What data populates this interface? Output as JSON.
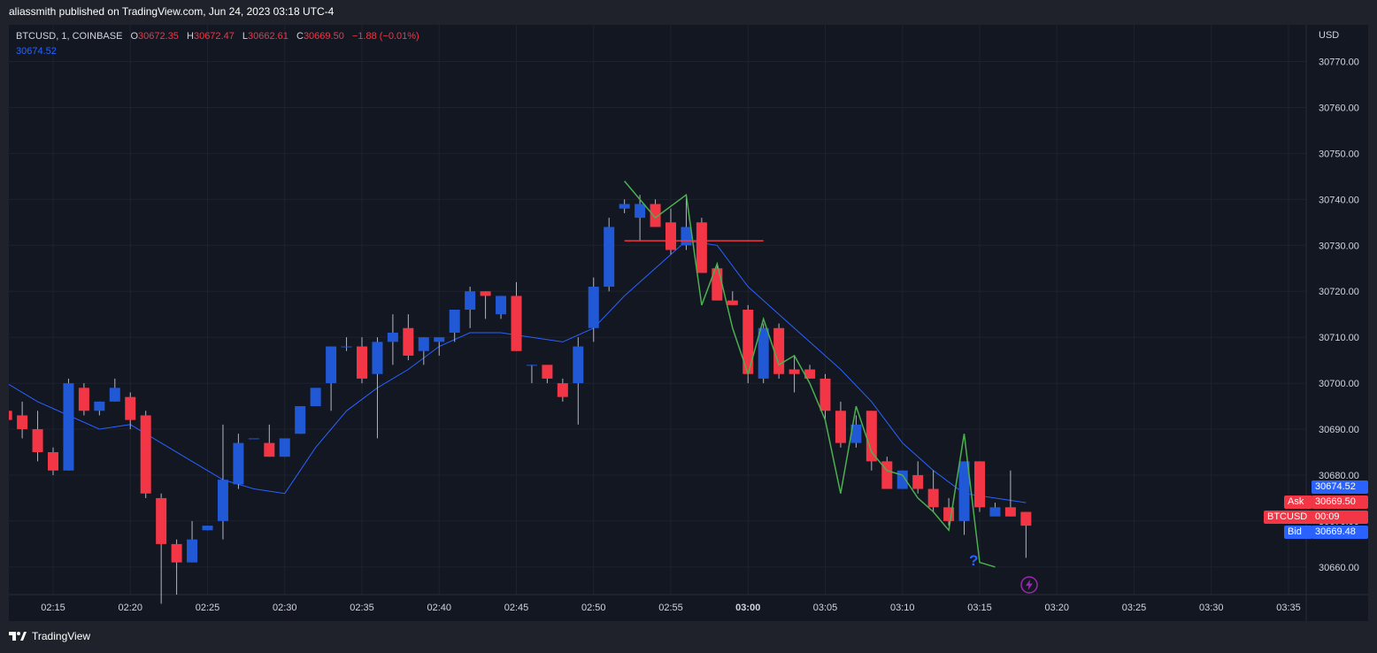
{
  "header": {
    "text": "aliassmith published on TradingView.com, Jun 24, 2023 03:18 UTC-4"
  },
  "symbol": {
    "name": "BTCUSD, 1, COINBASE",
    "o_label": "O",
    "o_value": "30672.35",
    "h_label": "H",
    "h_value": "30672.47",
    "l_label": "L",
    "l_value": "30662.61",
    "c_label": "C",
    "c_value": "30669.50",
    "change": "−1.88 (−0.01%)"
  },
  "ma_value": "30674.52",
  "currency": "USD",
  "price_tags": {
    "ma": "30674.52",
    "ask_label": "Ask",
    "ask": "30669.50",
    "symbol_label": "BTCUSD",
    "countdown": "00:09",
    "bid_label": "Bid",
    "bid": "30669.48"
  },
  "footer": {
    "brand": "TradingView"
  },
  "annotation": {
    "question": "?"
  },
  "colors": {
    "up": "#2158d6",
    "down": "#f23645",
    "ma": "#2962ff",
    "zigzag": "#4caf50",
    "bg": "#131722"
  },
  "chart_data": {
    "type": "candlestick",
    "title": "BTCUSD, 1, COINBASE",
    "x_ticks": [
      "02:15",
      "02:20",
      "02:25",
      "02:30",
      "02:35",
      "02:40",
      "02:45",
      "02:50",
      "02:55",
      "03:00",
      "03:05",
      "03:10",
      "03:15",
      "03:20",
      "03:25",
      "03:30",
      "03:35"
    ],
    "x_tick_start_minute": 135,
    "y_ticks": [
      30660,
      30670,
      30680,
      30690,
      30700,
      30710,
      30720,
      30730,
      30740,
      30750,
      30760,
      30770
    ],
    "ylim": [
      30654,
      30778
    ],
    "grid": true,
    "candles": {
      "fields": [
        "minute",
        "open",
        "high",
        "low",
        "close"
      ],
      "rows": [
        [
          132,
          30694,
          30695,
          30690,
          30692
        ],
        [
          133,
          30693,
          30696,
          30688,
          30690
        ],
        [
          134,
          30690,
          30694,
          30683,
          30685
        ],
        [
          135,
          30685,
          30686,
          30680,
          30681
        ],
        [
          136,
          30681,
          30701,
          30681,
          30700
        ],
        [
          137,
          30699,
          30700,
          30693,
          30694
        ],
        [
          138,
          30694,
          30696,
          30693,
          30696
        ],
        [
          139,
          30696,
          30701,
          30696,
          30699
        ],
        [
          140,
          30697,
          30698,
          30690,
          30692
        ],
        [
          141,
          30693,
          30694,
          30675,
          30676
        ],
        [
          142,
          30675,
          30676,
          30652,
          30665
        ],
        [
          143,
          30665,
          30666,
          30654,
          30661
        ],
        [
          144,
          30661,
          30670,
          30661,
          30666
        ],
        [
          145,
          30668,
          30669,
          30668,
          30669
        ],
        [
          146,
          30670,
          30691,
          30666,
          30679
        ],
        [
          147,
          30678,
          30689,
          30677,
          30687
        ],
        [
          148,
          30688,
          30688,
          30688,
          30688
        ],
        [
          149,
          30687,
          30691,
          30684,
          30684
        ],
        [
          150,
          30684,
          30687,
          30684,
          30688
        ],
        [
          151,
          30689,
          30695,
          30689,
          30695
        ],
        [
          152,
          30695,
          30698,
          30697,
          30699
        ],
        [
          153,
          30700,
          30708,
          30694,
          30708
        ],
        [
          154,
          30708,
          30710,
          30707,
          30708
        ],
        [
          155,
          30708,
          30710,
          30700,
          30701
        ],
        [
          156,
          30702,
          30710,
          30688,
          30709
        ],
        [
          157,
          30709,
          30715,
          30704,
          30711
        ],
        [
          158,
          30712,
          30715,
          30705,
          30706
        ],
        [
          159,
          30707,
          30710,
          30704,
          30710
        ],
        [
          160,
          30709,
          30709,
          30706,
          30710
        ],
        [
          161,
          30711,
          30716,
          30709,
          30716
        ],
        [
          162,
          30716,
          30721,
          30712,
          30720
        ],
        [
          163,
          30720,
          30720,
          30714,
          30719
        ],
        [
          164,
          30715,
          30719,
          30714,
          30719
        ],
        [
          165,
          30719,
          30722,
          30707,
          30707
        ],
        [
          166,
          30704,
          30704,
          30700,
          30704
        ],
        [
          167,
          30704,
          30703,
          30700,
          30701
        ],
        [
          168,
          30700,
          30701,
          30696,
          30697
        ],
        [
          169,
          30700,
          30710,
          30691,
          30708
        ],
        [
          170,
          30712,
          30723,
          30709,
          30721
        ],
        [
          171,
          30721,
          30736,
          30720,
          30734
        ],
        [
          172,
          30738,
          30740,
          30737,
          30739
        ],
        [
          173,
          30736,
          30741,
          30731,
          30739
        ],
        [
          174,
          30739,
          30740,
          30734,
          30734
        ],
        [
          175,
          30735,
          30738,
          30728,
          30729
        ],
        [
          176,
          30730,
          30741,
          30729,
          30734
        ],
        [
          177,
          30735,
          30736,
          30724,
          30724
        ],
        [
          178,
          30725,
          30726,
          30718,
          30718
        ],
        [
          179,
          30718,
          30720,
          30717,
          30717
        ],
        [
          180,
          30716,
          30717,
          30700,
          30702
        ],
        [
          181,
          30701,
          30713,
          30700,
          30712
        ],
        [
          182,
          30712,
          30713,
          30701,
          30702
        ],
        [
          183,
          30703,
          30706,
          30698,
          30702
        ],
        [
          184,
          30703,
          30704,
          30701,
          30701
        ],
        [
          185,
          30701,
          30702,
          30692,
          30694
        ],
        [
          186,
          30694,
          30696,
          30686,
          30687
        ],
        [
          187,
          30687,
          30693,
          30686,
          30691
        ],
        [
          188,
          30694,
          30694,
          30681,
          30683
        ],
        [
          189,
          30683,
          30684,
          30677,
          30677
        ],
        [
          190,
          30677,
          30681,
          30677,
          30681
        ],
        [
          191,
          30680,
          30683,
          30676,
          30677
        ],
        [
          192,
          30677,
          30681,
          30672,
          30673
        ],
        [
          193,
          30673,
          30675,
          30669,
          30670
        ],
        [
          194,
          30670,
          30683,
          30667,
          30683
        ],
        [
          195,
          30683,
          30683,
          30672,
          30673
        ],
        [
          196,
          30671,
          30674,
          30672,
          30673
        ],
        [
          197,
          30673,
          30681,
          30671,
          30671
        ],
        [
          198,
          30672,
          30672,
          30662,
          30669
        ]
      ]
    },
    "ma_series": {
      "x": [
        132,
        134,
        136,
        138,
        140,
        142,
        144,
        146,
        148,
        150,
        152,
        154,
        156,
        158,
        160,
        162,
        164,
        166,
        168,
        170,
        172,
        174,
        176,
        178,
        180,
        182,
        184,
        186,
        188,
        190,
        192,
        194,
        196,
        198
      ],
      "y": [
        30700,
        30696,
        30693,
        30690,
        30691,
        30687,
        30683,
        30679,
        30677,
        30676,
        30686,
        30694,
        30699,
        30703,
        30708,
        30711,
        30711,
        30710,
        30709,
        30712,
        30719,
        30725,
        30731,
        30730,
        30721,
        30715,
        30709,
        30703,
        30696,
        30687,
        30681,
        30676,
        30675,
        30674
      ]
    },
    "zigzag": {
      "x": [
        172,
        174,
        176,
        177,
        178,
        179,
        180,
        181,
        182,
        183,
        184,
        185,
        186,
        187,
        188,
        189,
        190,
        191,
        192,
        193,
        194,
        195,
        196
      ],
      "y": [
        30744,
        30736,
        30741,
        30717,
        30726,
        30712,
        30702,
        30714,
        30704,
        30706,
        30700,
        30692,
        30676,
        30695,
        30685,
        30681,
        30680,
        30675,
        30672,
        30668,
        30689,
        30661,
        30660
      ]
    },
    "hline": {
      "y": 30731,
      "x_start": 172,
      "x_end": 181
    }
  }
}
